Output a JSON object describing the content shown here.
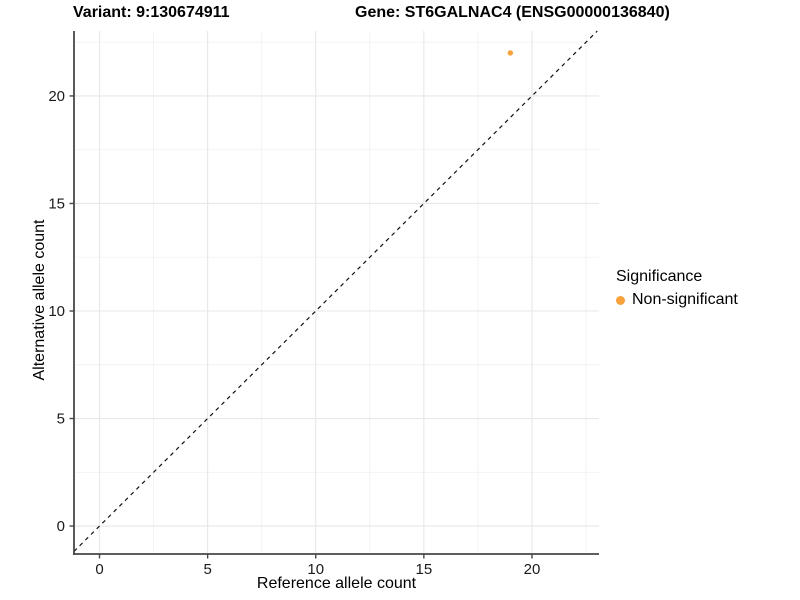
{
  "titles": {
    "left": "Variant: 9:130674911",
    "right": "Gene: ST6GALNAC4 (ENSG00000136840)"
  },
  "chart_data": {
    "type": "scatter",
    "xlabel": "Reference allele count",
    "ylabel": "Alternative allele count",
    "xticks": [
      0,
      5,
      10,
      15,
      20
    ],
    "yticks": [
      0,
      5,
      10,
      15,
      20
    ],
    "minor_xticks": [
      2.5,
      7.5,
      12.5,
      17.5,
      22.5
    ],
    "minor_yticks": [
      2.5,
      7.5,
      12.5,
      17.5,
      22.5
    ],
    "xlim": [
      -1.18,
      23.1
    ],
    "ylim": [
      -1.3,
      23.02
    ],
    "grid": true,
    "points": [
      {
        "x": 19,
        "y": 22,
        "series": "Non-significant"
      }
    ],
    "identity_line": {
      "type": "y=x",
      "style": "dashed"
    },
    "legend": {
      "title": "Significance",
      "position": "right",
      "items": [
        {
          "label": "Non-significant",
          "color": "#F9A13A",
          "marker": "circle"
        }
      ]
    },
    "style": {
      "point_color": "#F9A13A",
      "point_radius": 2.7,
      "dashed_line_color": "#111111",
      "axis_line_color": "#474747",
      "grid_major_color": "#E7E7E7",
      "grid_minor_color": "#F2F2F2",
      "tick_label_color": "#1A1A1A",
      "background": "#FFFFFF"
    }
  }
}
